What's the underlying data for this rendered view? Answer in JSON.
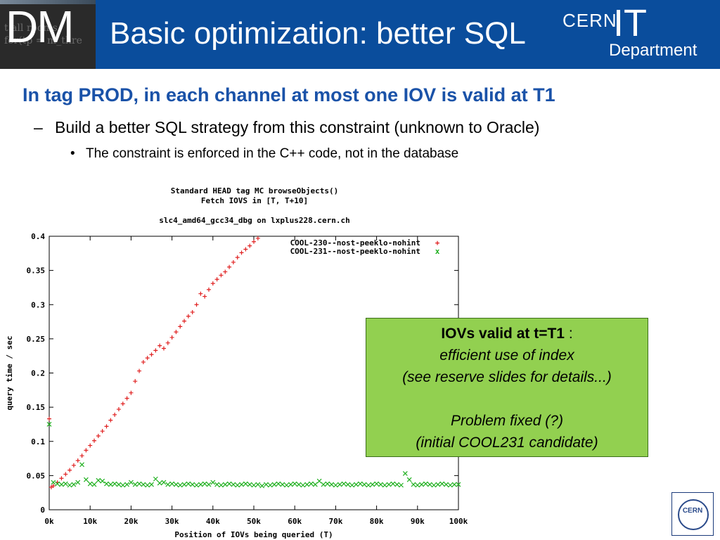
{
  "header": {
    "logo_text": "DM",
    "title": "Basic optimization: better SQL",
    "logo_right_cern": "CERN",
    "logo_right_it": "IT",
    "logo_right_dept": "Department",
    "background_color": "#0a4d9c"
  },
  "bullets": {
    "level1": "In tag PROD, in each channel at most one IOV is valid at T1",
    "level2": "Build a better SQL strategy from this constraint (unknown to Oracle)",
    "level3": "The constraint is enforced in the C++ code, not in the database"
  },
  "callout": {
    "line1_bold": "IOVs valid at t=T1",
    "line1_rest": " :",
    "line2": "efficient use of index",
    "line3": "(see reserve slides for details...)",
    "line4": "Problem fixed (?)",
    "line5": "(initial COOL231 candidate)",
    "background_color": "#92d050"
  },
  "chart_data": {
    "type": "scatter",
    "title_lines": [
      "Standard HEAD tag MC browseObjects()",
      "Fetch IOVS in [T, T+10]",
      "",
      "slc4_amd64_gcc34_dbg on lxplus228.cern.ch"
    ],
    "xlabel": "Position of IOVs being queried (T)",
    "ylabel": "query time / sec",
    "xlim": [
      0,
      100000
    ],
    "ylim": [
      0,
      0.4
    ],
    "x_ticks": [
      0,
      10000,
      20000,
      30000,
      40000,
      50000,
      60000,
      70000,
      80000,
      90000,
      100000
    ],
    "x_tick_labels": [
      "0k",
      "10k",
      "20k",
      "30k",
      "40k",
      "50k",
      "60k",
      "70k",
      "80k",
      "90k",
      "100k"
    ],
    "y_ticks": [
      0,
      0.05,
      0.1,
      0.15,
      0.2,
      0.25,
      0.3,
      0.35,
      0.4
    ],
    "y_tick_labels": [
      "0",
      "0.05",
      "0.1",
      "0.15",
      "0.2",
      "0.25",
      "0.3",
      "0.35",
      "0.4"
    ],
    "legend_position": "top-right",
    "series": [
      {
        "name": "COOL-230--nost-peeklo-nohint",
        "marker": "+",
        "color": "#e02020",
        "x": [
          0,
          500,
          1000,
          2000,
          3000,
          4000,
          5000,
          6000,
          7000,
          8000,
          9000,
          10000,
          11000,
          12000,
          13000,
          14000,
          15000,
          16000,
          17000,
          18000,
          19000,
          20000,
          21000,
          22000,
          23000,
          24000,
          25000,
          26000,
          27000,
          28000,
          29000,
          30000,
          31000,
          32000,
          33000,
          34000,
          35000,
          36000,
          37000,
          38000,
          39000,
          40000,
          41000,
          42000,
          43000,
          44000,
          45000,
          46000,
          47000,
          48000,
          49000,
          50000,
          51000
        ],
        "y": [
          0.133,
          0.033,
          0.035,
          0.04,
          0.046,
          0.052,
          0.058,
          0.065,
          0.072,
          0.079,
          0.087,
          0.094,
          0.101,
          0.108,
          0.115,
          0.122,
          0.131,
          0.139,
          0.147,
          0.155,
          0.163,
          0.171,
          0.188,
          0.203,
          0.216,
          0.222,
          0.227,
          0.233,
          0.24,
          0.236,
          0.244,
          0.252,
          0.26,
          0.268,
          0.276,
          0.283,
          0.289,
          0.3,
          0.316,
          0.312,
          0.322,
          0.331,
          0.337,
          0.343,
          0.348,
          0.355,
          0.362,
          0.369,
          0.376,
          0.381,
          0.386,
          0.392,
          0.397
        ]
      },
      {
        "name": "COOL-231--nost-peeklo-nohint",
        "marker": "x",
        "color": "#20b020",
        "x": [
          0,
          1000,
          2000,
          3000,
          4000,
          5000,
          6000,
          7000,
          8000,
          9000,
          10000,
          11000,
          12000,
          13000,
          14000,
          15000,
          16000,
          17000,
          18000,
          19000,
          20000,
          21000,
          22000,
          23000,
          24000,
          25000,
          26000,
          27000,
          28000,
          29000,
          30000,
          31000,
          32000,
          33000,
          34000,
          35000,
          36000,
          37000,
          38000,
          39000,
          40000,
          41000,
          42000,
          43000,
          44000,
          45000,
          46000,
          47000,
          48000,
          49000,
          50000,
          51000,
          52000,
          53000,
          54000,
          55000,
          56000,
          57000,
          58000,
          59000,
          60000,
          61000,
          62000,
          63000,
          64000,
          65000,
          66000,
          67000,
          68000,
          69000,
          70000,
          71000,
          72000,
          73000,
          74000,
          75000,
          76000,
          77000,
          78000,
          79000,
          80000,
          81000,
          82000,
          83000,
          84000,
          85000,
          86000,
          87000,
          88000,
          89000,
          90000,
          91000,
          92000,
          93000,
          94000,
          95000,
          96000,
          97000,
          98000,
          99000,
          100000
        ],
        "y": [
          0.125,
          0.04,
          0.038,
          0.037,
          0.038,
          0.036,
          0.037,
          0.04,
          0.066,
          0.044,
          0.038,
          0.037,
          0.043,
          0.042,
          0.038,
          0.037,
          0.038,
          0.037,
          0.036,
          0.037,
          0.04,
          0.037,
          0.038,
          0.037,
          0.036,
          0.037,
          0.045,
          0.039,
          0.04,
          0.037,
          0.038,
          0.037,
          0.036,
          0.037,
          0.038,
          0.037,
          0.036,
          0.037,
          0.038,
          0.037,
          0.04,
          0.037,
          0.036,
          0.037,
          0.038,
          0.037,
          0.036,
          0.037,
          0.038,
          0.037,
          0.036,
          0.037,
          0.035,
          0.037,
          0.036,
          0.037,
          0.038,
          0.037,
          0.036,
          0.037,
          0.038,
          0.037,
          0.036,
          0.037,
          0.038,
          0.037,
          0.042,
          0.037,
          0.038,
          0.037,
          0.036,
          0.037,
          0.038,
          0.037,
          0.036,
          0.037,
          0.038,
          0.037,
          0.036,
          0.037,
          0.038,
          0.037,
          0.036,
          0.037,
          0.038,
          0.037,
          0.036,
          0.053,
          0.044,
          0.037,
          0.036,
          0.037,
          0.038,
          0.037,
          0.036,
          0.037,
          0.038,
          0.037,
          0.036,
          0.037,
          0.037
        ]
      }
    ]
  }
}
